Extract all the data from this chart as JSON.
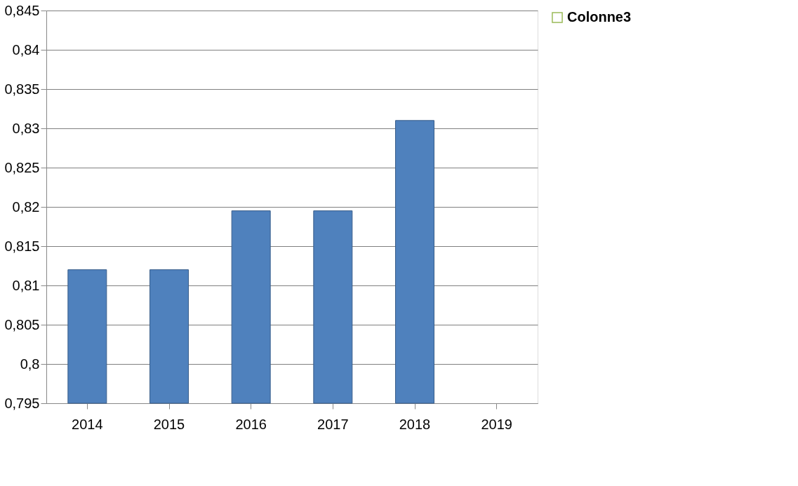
{
  "chart_data": {
    "type": "bar",
    "categories": [
      "2014",
      "2015",
      "2016",
      "2017",
      "2018",
      "2019"
    ],
    "series": [
      {
        "color": "#4f81bd",
        "values": [
          0.812,
          0.812,
          0.8195,
          0.8195,
          0.831,
          null
        ]
      },
      {
        "name": "Colonne3",
        "color": "#9bbb59",
        "values": [
          null,
          null,
          null,
          null,
          null,
          null
        ]
      }
    ],
    "ylim": [
      0.795,
      0.845
    ],
    "yticks": [
      {
        "value": 0.795,
        "label": "0,795"
      },
      {
        "value": 0.8,
        "label": "0,8"
      },
      {
        "value": 0.805,
        "label": "0,805"
      },
      {
        "value": 0.81,
        "label": "0,81"
      },
      {
        "value": 0.815,
        "label": "0,815"
      },
      {
        "value": 0.82,
        "label": "0,82"
      },
      {
        "value": 0.825,
        "label": "0,825"
      },
      {
        "value": 0.83,
        "label": "0,83"
      },
      {
        "value": 0.835,
        "label": "0,835"
      },
      {
        "value": 0.84,
        "label": "0,84"
      },
      {
        "value": 0.845,
        "label": "0,845"
      }
    ],
    "grid": "y",
    "legend": "right"
  }
}
